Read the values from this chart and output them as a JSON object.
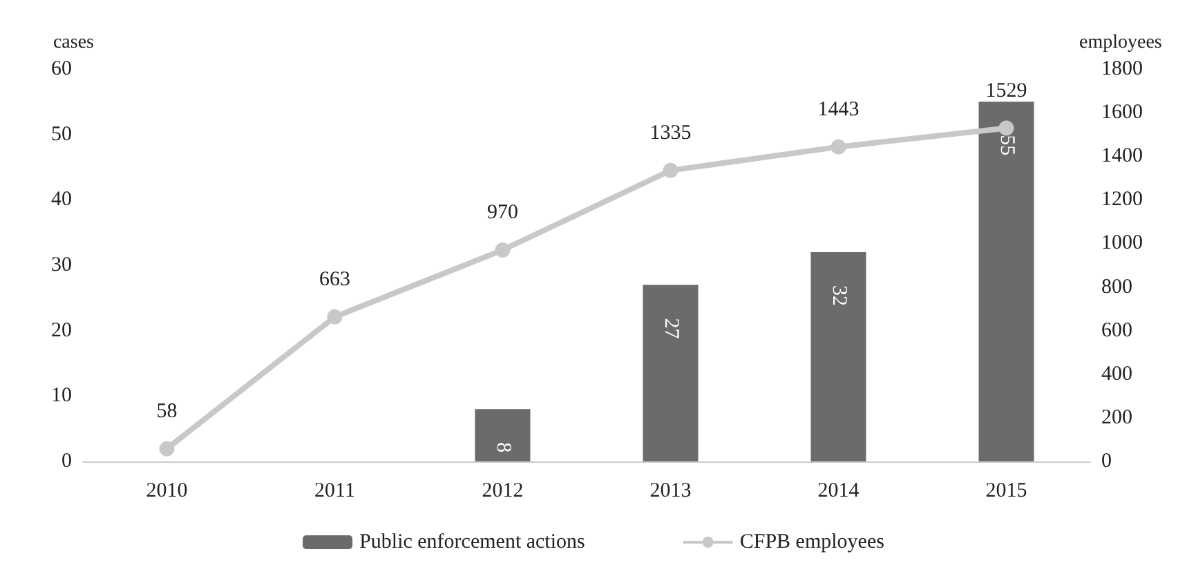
{
  "chart_data": {
    "type": "bar",
    "categories": [
      "2010",
      "2011",
      "2012",
      "2013",
      "2014",
      "2015"
    ],
    "series": [
      {
        "name": "Public enforcement actions",
        "color": "#6b6b6b",
        "values": [
          null,
          null,
          8,
          27,
          32,
          55
        ]
      },
      {
        "name": "CFPB employees",
        "type": "line",
        "axis": "y2",
        "color": "#c8c8c8",
        "marker": "circle",
        "values": [
          58,
          663,
          970,
          1335,
          1443,
          1529
        ]
      }
    ],
    "ylabel": "cases",
    "y2label": "employees",
    "ylim": [
      0,
      60
    ],
    "yticks": [
      0,
      10,
      20,
      30,
      40,
      50,
      60
    ],
    "y2lim": [
      0,
      1800
    ],
    "y2ticks": [
      0,
      200,
      400,
      600,
      800,
      1000,
      1200,
      1400,
      1600,
      1800
    ],
    "data_labels": true,
    "legend": "bottom",
    "grid": false
  }
}
